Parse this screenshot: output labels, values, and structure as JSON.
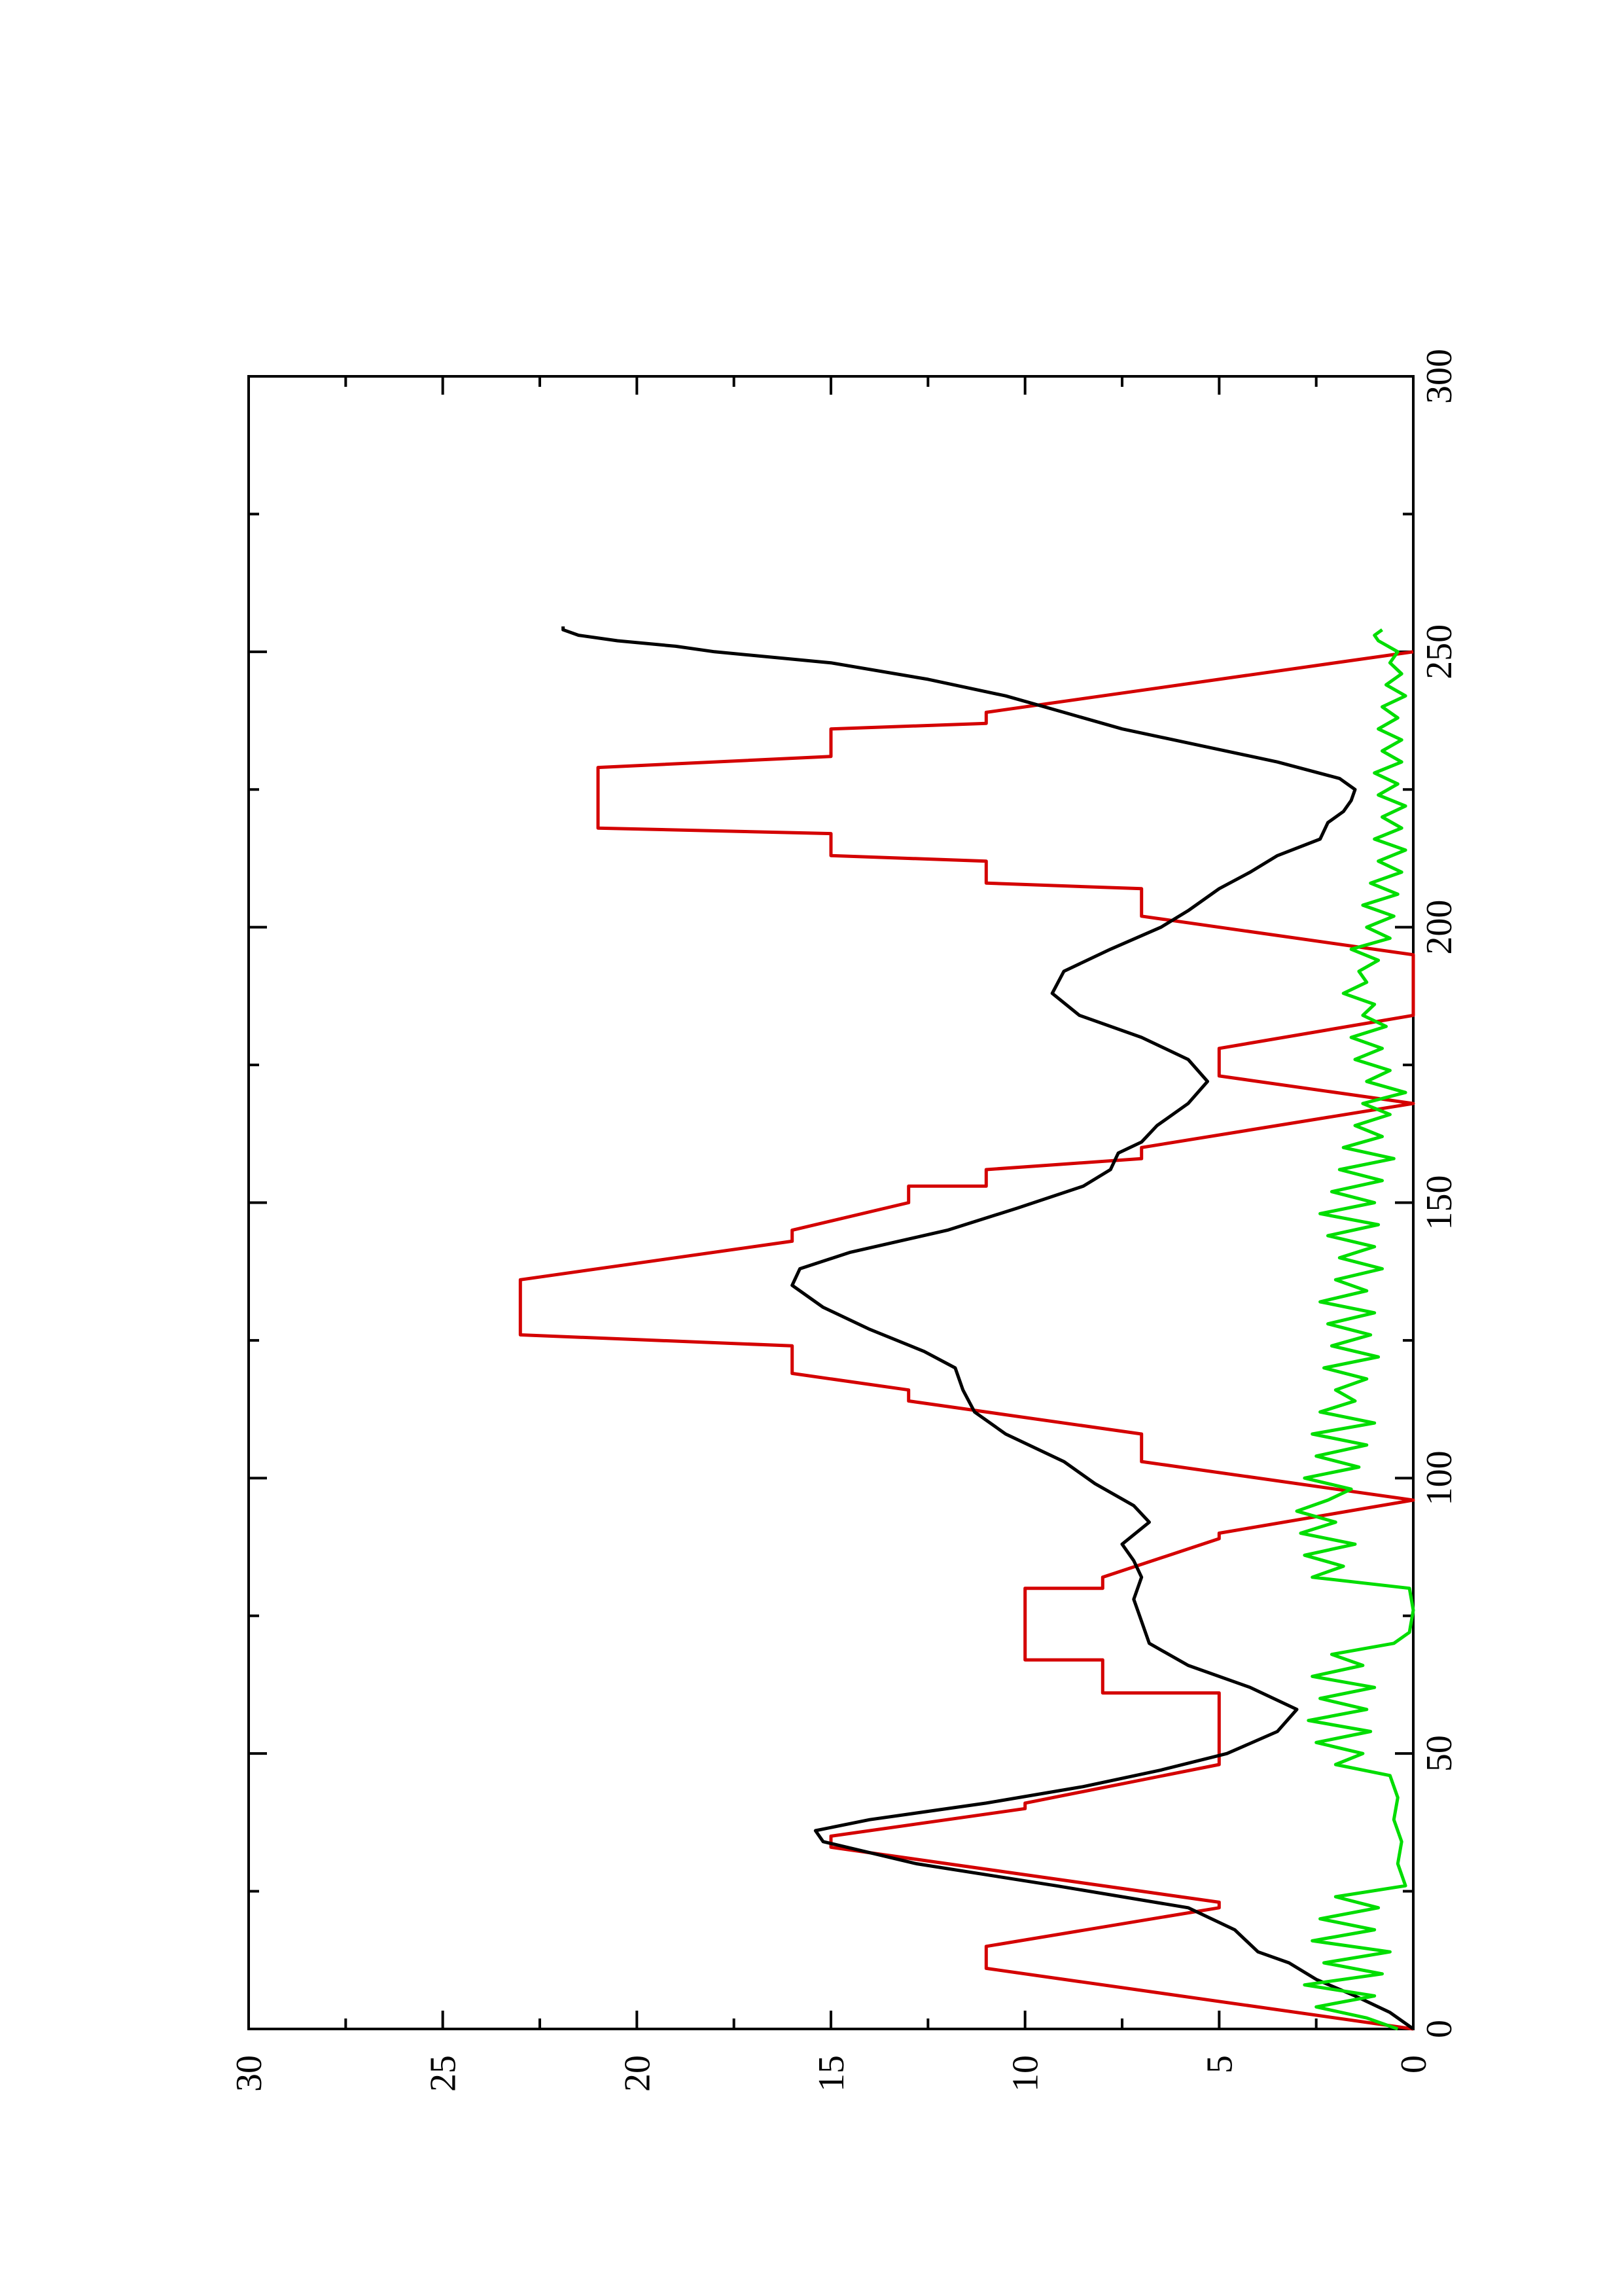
{
  "chart_data": {
    "type": "line",
    "orientation": "rotated-90-ccw",
    "title": "",
    "xlabel": "",
    "ylabel": "",
    "xlim": [
      0,
      300
    ],
    "ylim": [
      0,
      30
    ],
    "x_ticks": [
      "0",
      "50",
      "100",
      "150",
      "200",
      "250",
      "300"
    ],
    "y_ticks": [
      "0",
      "5",
      "10",
      "15",
      "20",
      "25",
      "30"
    ],
    "grid": false,
    "legend": "none",
    "series": [
      {
        "color": "#d40000",
        "style": "stepped-trapezoid",
        "points": [
          [
            0,
            0
          ],
          [
            11,
            11
          ],
          [
            15,
            11
          ],
          [
            22,
            5
          ],
          [
            23,
            5
          ],
          [
            33,
            15
          ],
          [
            35,
            15
          ],
          [
            40,
            10
          ],
          [
            41,
            10
          ],
          [
            48,
            5
          ],
          [
            61,
            5
          ],
          [
            61,
            8
          ],
          [
            67,
            8
          ],
          [
            67,
            10
          ],
          [
            80,
            10
          ],
          [
            80,
            8
          ],
          [
            82,
            8
          ],
          [
            89,
            5
          ],
          [
            90,
            5
          ],
          [
            96,
            0
          ],
          [
            103,
            7
          ],
          [
            108,
            7
          ],
          [
            114,
            13
          ],
          [
            116,
            13
          ],
          [
            119,
            16
          ],
          [
            124,
            16
          ],
          [
            126,
            23
          ],
          [
            136,
            23
          ],
          [
            143,
            16
          ],
          [
            145,
            16
          ],
          [
            150,
            13
          ],
          [
            153,
            13
          ],
          [
            153,
            11
          ],
          [
            156,
            11
          ],
          [
            158,
            7
          ],
          [
            160,
            7
          ],
          [
            168,
            0
          ],
          [
            173,
            5
          ],
          [
            178,
            5
          ],
          [
            184,
            0
          ],
          [
            195,
            0
          ],
          [
            202,
            7
          ],
          [
            207,
            7
          ],
          [
            208,
            11
          ],
          [
            212,
            11
          ],
          [
            213,
            15
          ],
          [
            217,
            15
          ],
          [
            218,
            21
          ],
          [
            229,
            21
          ],
          [
            231,
            15
          ],
          [
            236,
            15
          ],
          [
            237,
            11
          ],
          [
            239,
            11
          ],
          [
            250,
            0
          ]
        ]
      },
      {
        "color": "#000000",
        "style": "smooth",
        "points": [
          [
            0,
            0
          ],
          [
            3,
            0.6
          ],
          [
            6,
            1.5
          ],
          [
            9,
            2.5
          ],
          [
            12,
            3.2
          ],
          [
            14,
            4.0
          ],
          [
            18,
            4.6
          ],
          [
            22,
            5.8
          ],
          [
            26,
            9.2
          ],
          [
            30,
            12.8
          ],
          [
            34,
            15.2
          ],
          [
            36,
            15.4
          ],
          [
            38,
            14.0
          ],
          [
            41,
            11.0
          ],
          [
            44,
            8.5
          ],
          [
            47,
            6.5
          ],
          [
            50,
            4.8
          ],
          [
            54,
            3.5
          ],
          [
            58,
            3.0
          ],
          [
            62,
            4.2
          ],
          [
            66,
            5.8
          ],
          [
            70,
            6.8
          ],
          [
            74,
            7.0
          ],
          [
            78,
            7.2
          ],
          [
            82,
            7.0
          ],
          [
            85,
            7.2
          ],
          [
            88,
            7.5
          ],
          [
            92,
            6.8
          ],
          [
            95,
            7.2
          ],
          [
            99,
            8.2
          ],
          [
            103,
            9.0
          ],
          [
            108,
            10.5
          ],
          [
            112,
            11.3
          ],
          [
            116,
            11.6
          ],
          [
            120,
            11.8
          ],
          [
            123,
            12.6
          ],
          [
            127,
            14.0
          ],
          [
            131,
            15.2
          ],
          [
            135,
            16.0
          ],
          [
            138,
            15.8
          ],
          [
            141,
            14.5
          ],
          [
            145,
            12.0
          ],
          [
            149,
            10.2
          ],
          [
            153,
            8.5
          ],
          [
            156,
            7.8
          ],
          [
            159,
            7.6
          ],
          [
            161,
            7.0
          ],
          [
            164,
            6.6
          ],
          [
            168,
            5.8
          ],
          [
            172,
            5.3
          ],
          [
            176,
            5.8
          ],
          [
            180,
            7.0
          ],
          [
            184,
            8.6
          ],
          [
            188,
            9.3
          ],
          [
            192,
            9.0
          ],
          [
            196,
            7.8
          ],
          [
            200,
            6.5
          ],
          [
            203,
            5.8
          ],
          [
            207,
            5.0
          ],
          [
            210,
            4.2
          ],
          [
            213,
            3.5
          ],
          [
            216,
            2.4
          ],
          [
            219,
            2.2
          ],
          [
            221,
            1.8
          ],
          [
            223,
            1.6
          ],
          [
            225,
            1.5
          ],
          [
            227,
            1.9
          ],
          [
            230,
            3.5
          ],
          [
            233,
            5.5
          ],
          [
            236,
            7.5
          ],
          [
            239,
            9.0
          ],
          [
            242,
            10.5
          ],
          [
            245,
            12.5
          ],
          [
            248,
            15.0
          ],
          [
            250,
            18.0
          ],
          [
            251,
            19.0
          ],
          [
            252,
            20.5
          ],
          [
            253,
            21.5
          ],
          [
            254,
            21.9
          ],
          [
            254.6,
            21.9
          ]
        ]
      },
      {
        "color": "#00dd00",
        "style": "noisy",
        "points": [
          [
            0,
            0.4
          ],
          [
            2,
            1.2
          ],
          [
            4,
            2.5
          ],
          [
            6,
            1.0
          ],
          [
            8,
            2.8
          ],
          [
            10,
            0.8
          ],
          [
            12,
            2.3
          ],
          [
            14,
            0.6
          ],
          [
            16,
            2.6
          ],
          [
            18,
            1.0
          ],
          [
            20,
            2.4
          ],
          [
            22,
            0.9
          ],
          [
            24,
            2.0
          ],
          [
            26,
            0.2
          ],
          [
            30,
            0.4
          ],
          [
            34,
            0.3
          ],
          [
            38,
            0.5
          ],
          [
            42,
            0.4
          ],
          [
            46,
            0.6
          ],
          [
            48,
            2.0
          ],
          [
            50,
            1.3
          ],
          [
            52,
            2.5
          ],
          [
            54,
            1.1
          ],
          [
            56,
            2.7
          ],
          [
            58,
            1.2
          ],
          [
            60,
            2.4
          ],
          [
            62,
            1.0
          ],
          [
            64,
            2.6
          ],
          [
            66,
            1.3
          ],
          [
            68,
            2.1
          ],
          [
            70,
            0.5
          ],
          [
            72,
            0.1
          ],
          [
            76,
            0.0
          ],
          [
            80,
            0.1
          ],
          [
            82,
            2.6
          ],
          [
            84,
            1.8
          ],
          [
            86,
            2.8
          ],
          [
            88,
            1.5
          ],
          [
            90,
            2.9
          ],
          [
            92,
            2.0
          ],
          [
            94,
            3.0
          ],
          [
            96,
            2.2
          ],
          [
            98,
            1.6
          ],
          [
            100,
            2.8
          ],
          [
            102,
            1.4
          ],
          [
            104,
            2.5
          ],
          [
            106,
            1.2
          ],
          [
            108,
            2.6
          ],
          [
            110,
            1.0
          ],
          [
            112,
            2.4
          ],
          [
            114,
            1.5
          ],
          [
            116,
            2.0
          ],
          [
            118,
            1.2
          ],
          [
            120,
            2.3
          ],
          [
            122,
            0.9
          ],
          [
            124,
            2.1
          ],
          [
            126,
            1.1
          ],
          [
            128,
            2.2
          ],
          [
            130,
            1.0
          ],
          [
            132,
            2.4
          ],
          [
            134,
            1.2
          ],
          [
            136,
            2.0
          ],
          [
            138,
            0.8
          ],
          [
            140,
            1.9
          ],
          [
            142,
            1.0
          ],
          [
            144,
            2.2
          ],
          [
            146,
            0.9
          ],
          [
            148,
            2.4
          ],
          [
            150,
            1.0
          ],
          [
            152,
            2.1
          ],
          [
            154,
            0.8
          ],
          [
            156,
            1.9
          ],
          [
            158,
            0.5
          ],
          [
            160,
            1.8
          ],
          [
            162,
            0.8
          ],
          [
            164,
            1.5
          ],
          [
            166,
            0.6
          ],
          [
            168,
            1.3
          ],
          [
            170,
            0.2
          ],
          [
            172,
            1.2
          ],
          [
            174,
            0.6
          ],
          [
            176,
            1.5
          ],
          [
            178,
            0.8
          ],
          [
            180,
            1.6
          ],
          [
            182,
            0.7
          ],
          [
            184,
            1.3
          ],
          [
            186,
            1.0
          ],
          [
            188,
            1.8
          ],
          [
            190,
            1.2
          ],
          [
            192,
            1.4
          ],
          [
            194,
            0.9
          ],
          [
            196,
            1.6
          ],
          [
            198,
            0.6
          ],
          [
            200,
            1.2
          ],
          [
            202,
            0.5
          ],
          [
            204,
            1.3
          ],
          [
            206,
            0.4
          ],
          [
            208,
            1.1
          ],
          [
            210,
            0.3
          ],
          [
            212,
            0.9
          ],
          [
            214,
            0.2
          ],
          [
            216,
            1.0
          ],
          [
            218,
            0.3
          ],
          [
            220,
            0.8
          ],
          [
            222,
            0.2
          ],
          [
            224,
            0.9
          ],
          [
            226,
            0.4
          ],
          [
            228,
            1.0
          ],
          [
            230,
            0.3
          ],
          [
            232,
            0.8
          ],
          [
            234,
            0.3
          ],
          [
            236,
            0.9
          ],
          [
            238,
            0.4
          ],
          [
            240,
            0.8
          ],
          [
            242,
            0.2
          ],
          [
            244,
            0.7
          ],
          [
            246,
            0.3
          ],
          [
            248,
            0.6
          ],
          [
            250,
            0.4
          ],
          [
            252,
            0.9
          ],
          [
            253,
            1.0
          ],
          [
            254,
            0.8
          ]
        ]
      }
    ]
  }
}
